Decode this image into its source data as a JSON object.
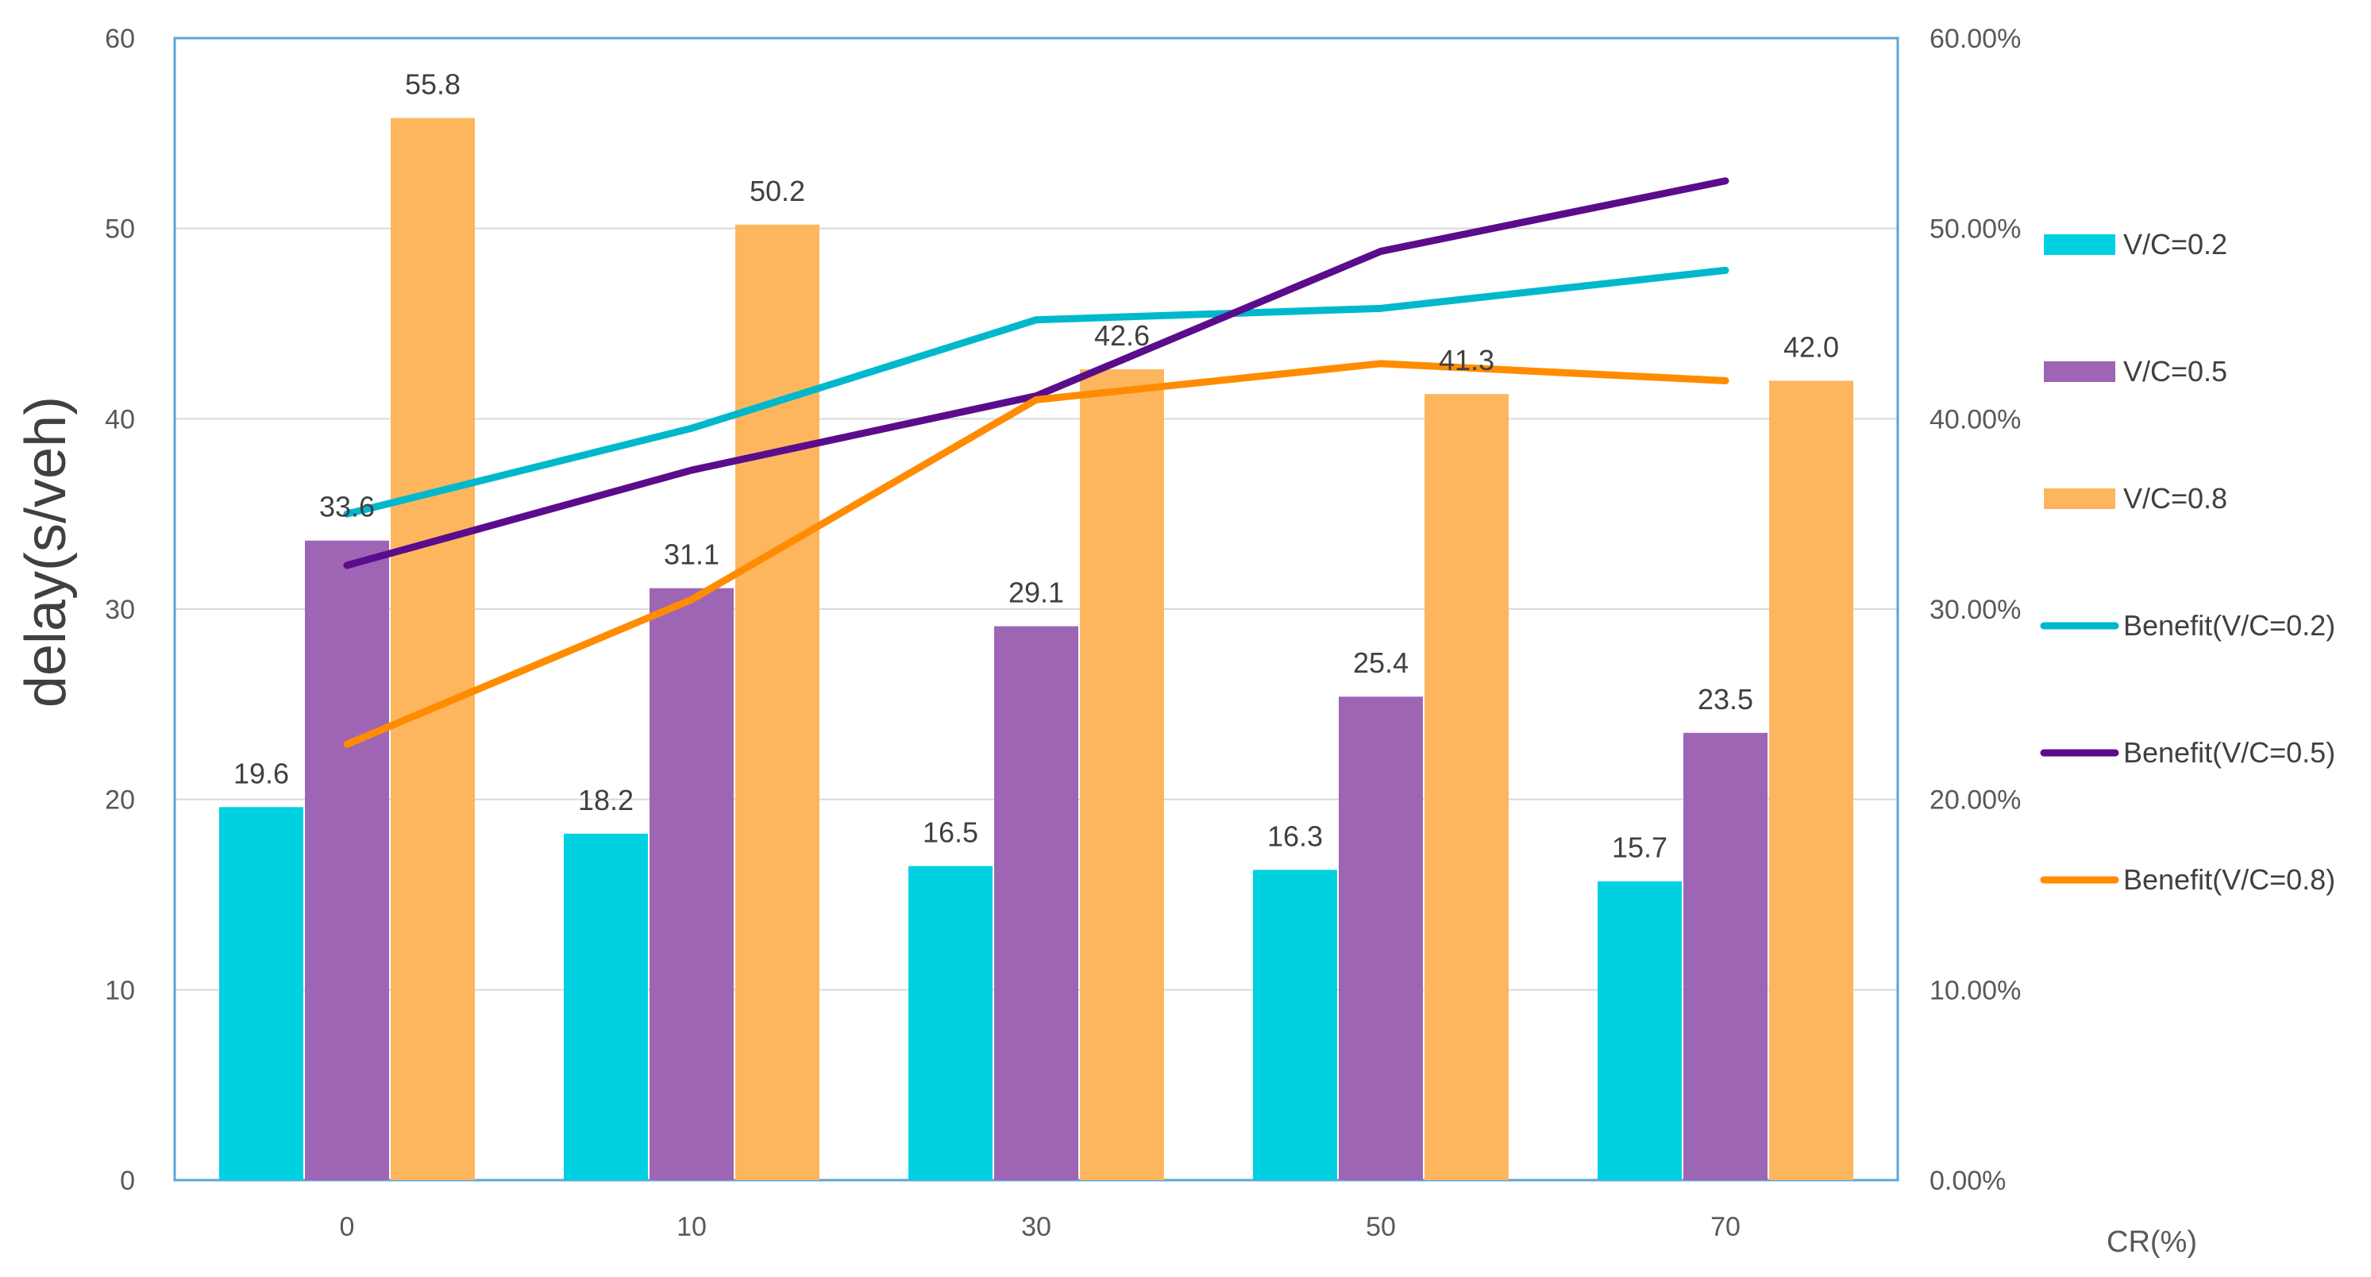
{
  "chart_data": {
    "type": "bar",
    "categories": [
      "0",
      "10",
      "30",
      "50",
      "70"
    ],
    "xlabel": "CR(%)",
    "ylabel": "delay(s/veh)",
    "ylim": [
      0,
      60
    ],
    "yticks": [
      "0",
      "10",
      "20",
      "30",
      "40",
      "50",
      "60"
    ],
    "y2lim": [
      0,
      0.6
    ],
    "y2ticks": [
      "0.00%",
      "10.00%",
      "20.00%",
      "30.00%",
      "40.00%",
      "50.00%",
      "60.00%"
    ],
    "grid": true,
    "legend_position": "right",
    "bar_series": [
      {
        "name": "V/C=0.2",
        "color": "#00D1E0",
        "values": [
          19.6,
          18.2,
          16.5,
          16.3,
          15.7
        ],
        "labels": [
          "19.6",
          "18.2",
          "16.5",
          "16.3",
          "15.7"
        ]
      },
      {
        "name": "V/C=0.5",
        "color": "#9E65B4",
        "values": [
          33.6,
          31.1,
          29.1,
          25.4,
          23.5
        ],
        "labels": [
          "33.6",
          "31.1",
          "29.1",
          "25.4",
          "23.5"
        ]
      },
      {
        "name": "V/C=0.8",
        "color": "#FDB65E",
        "values": [
          55.8,
          50.2,
          42.6,
          41.3,
          42.0
        ],
        "labels": [
          "55.8",
          "50.2",
          "42.6",
          "41.3",
          "42.0"
        ]
      }
    ],
    "line_series": [
      {
        "name": "Benefit(V/C=0.2)",
        "color": "#00B8CC",
        "axis": "right",
        "values": [
          0.35,
          0.395,
          0.452,
          0.458,
          0.478
        ]
      },
      {
        "name": "Benefit(V/C=0.5)",
        "color": "#5B0C8C",
        "axis": "right",
        "values": [
          0.323,
          0.373,
          0.412,
          0.488,
          0.525
        ]
      },
      {
        "name": "Benefit(V/C=0.8)",
        "color": "#FF8C00",
        "axis": "right",
        "values": [
          0.229,
          0.305,
          0.41,
          0.429,
          0.42
        ]
      }
    ]
  }
}
